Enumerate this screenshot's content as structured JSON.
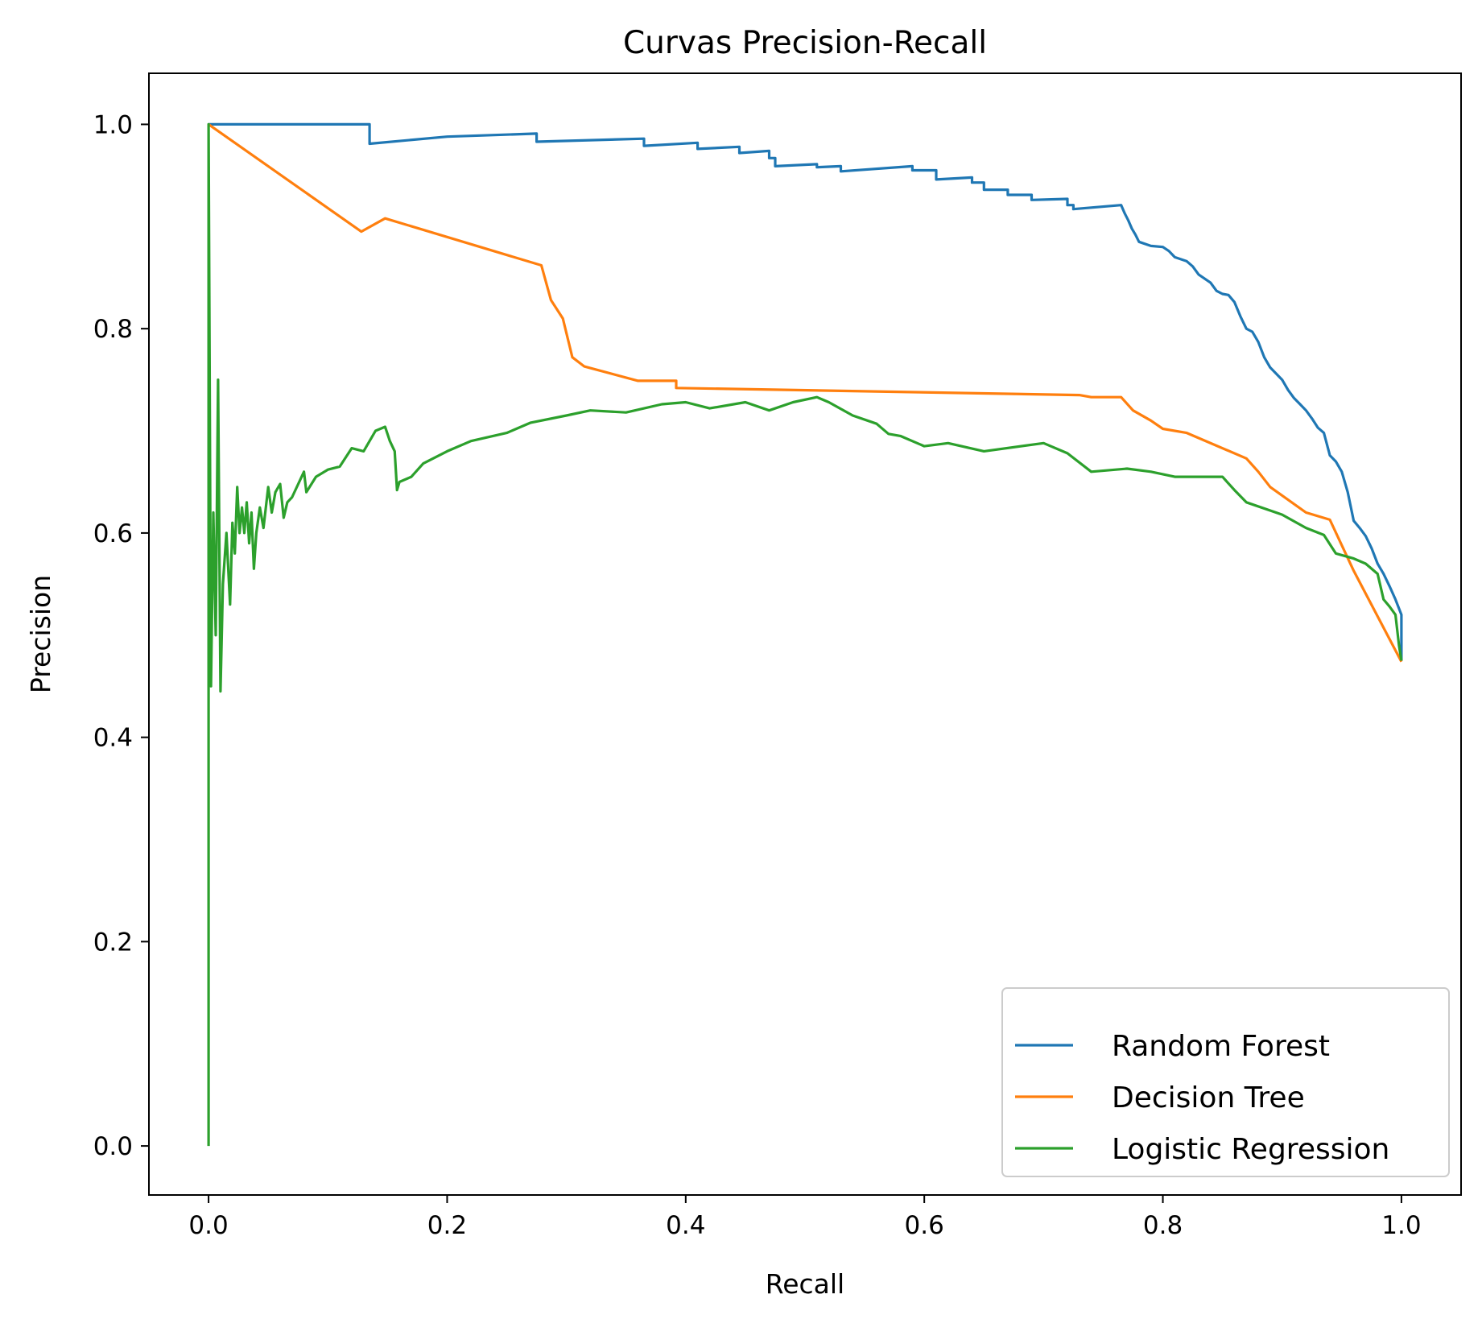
{
  "chart_data": {
    "type": "line",
    "title": "Curvas Precision-Recall",
    "xlabel": "Recall",
    "ylabel": "Precision",
    "xlim": [
      -0.05,
      1.05
    ],
    "ylim": [
      -0.048,
      1.05
    ],
    "xticks": [
      0.0,
      0.2,
      0.4,
      0.6,
      0.8,
      1.0
    ],
    "yticks": [
      0.0,
      0.2,
      0.4,
      0.6,
      0.8,
      1.0
    ],
    "xtick_labels": [
      "0.0",
      "0.2",
      "0.4",
      "0.6",
      "0.8",
      "1.0"
    ],
    "ytick_labels": [
      "0.0",
      "0.2",
      "0.4",
      "0.6",
      "0.8",
      "1.0"
    ],
    "grid": false,
    "legend_position": "lower-right",
    "series": [
      {
        "name": "Random Forest",
        "color": "#1f77b4",
        "step": true,
        "points": [
          [
            0.0,
            1.0
          ],
          [
            0.135,
            1.0
          ],
          [
            0.135,
            0.981
          ],
          [
            0.2,
            0.988
          ],
          [
            0.275,
            0.991
          ],
          [
            0.275,
            0.983
          ],
          [
            0.365,
            0.986
          ],
          [
            0.365,
            0.979
          ],
          [
            0.41,
            0.982
          ],
          [
            0.41,
            0.976
          ],
          [
            0.445,
            0.978
          ],
          [
            0.445,
            0.972
          ],
          [
            0.47,
            0.974
          ],
          [
            0.47,
            0.967
          ],
          [
            0.475,
            0.967
          ],
          [
            0.475,
            0.959
          ],
          [
            0.51,
            0.961
          ],
          [
            0.51,
            0.958
          ],
          [
            0.53,
            0.959
          ],
          [
            0.53,
            0.954
          ],
          [
            0.59,
            0.959
          ],
          [
            0.59,
            0.955
          ],
          [
            0.61,
            0.955
          ],
          [
            0.61,
            0.946
          ],
          [
            0.64,
            0.948
          ],
          [
            0.64,
            0.943
          ],
          [
            0.65,
            0.943
          ],
          [
            0.65,
            0.936
          ],
          [
            0.67,
            0.936
          ],
          [
            0.67,
            0.931
          ],
          [
            0.69,
            0.931
          ],
          [
            0.69,
            0.926
          ],
          [
            0.72,
            0.927
          ],
          [
            0.72,
            0.921
          ],
          [
            0.725,
            0.921
          ],
          [
            0.725,
            0.917
          ],
          [
            0.765,
            0.921
          ],
          [
            0.768,
            0.913
          ],
          [
            0.771,
            0.906
          ],
          [
            0.774,
            0.898
          ],
          [
            0.777,
            0.892
          ],
          [
            0.78,
            0.885
          ],
          [
            0.79,
            0.881
          ],
          [
            0.8,
            0.88
          ],
          [
            0.805,
            0.876
          ],
          [
            0.81,
            0.87
          ],
          [
            0.82,
            0.866
          ],
          [
            0.825,
            0.861
          ],
          [
            0.83,
            0.853
          ],
          [
            0.84,
            0.845
          ],
          [
            0.845,
            0.837
          ],
          [
            0.85,
            0.834
          ],
          [
            0.855,
            0.833
          ],
          [
            0.86,
            0.826
          ],
          [
            0.865,
            0.812
          ],
          [
            0.87,
            0.8
          ],
          [
            0.875,
            0.797
          ],
          [
            0.88,
            0.787
          ],
          [
            0.885,
            0.772
          ],
          [
            0.89,
            0.762
          ],
          [
            0.895,
            0.756
          ],
          [
            0.9,
            0.75
          ],
          [
            0.905,
            0.74
          ],
          [
            0.91,
            0.732
          ],
          [
            0.915,
            0.726
          ],
          [
            0.92,
            0.72
          ],
          [
            0.925,
            0.712
          ],
          [
            0.93,
            0.703
          ],
          [
            0.935,
            0.698
          ],
          [
            0.94,
            0.676
          ],
          [
            0.945,
            0.67
          ],
          [
            0.95,
            0.66
          ],
          [
            0.955,
            0.64
          ],
          [
            0.96,
            0.612
          ],
          [
            0.965,
            0.605
          ],
          [
            0.97,
            0.597
          ],
          [
            0.975,
            0.585
          ],
          [
            0.98,
            0.57
          ],
          [
            0.985,
            0.56
          ],
          [
            0.99,
            0.548
          ],
          [
            0.995,
            0.535
          ],
          [
            1.0,
            0.52
          ],
          [
            1.0,
            0.475
          ]
        ]
      },
      {
        "name": "Decision Tree",
        "color": "#ff7f0e",
        "step": false,
        "points": [
          [
            0.0,
            1.0
          ],
          [
            0.128,
            0.895
          ],
          [
            0.148,
            0.908
          ],
          [
            0.279,
            0.862
          ],
          [
            0.287,
            0.828
          ],
          [
            0.297,
            0.81
          ],
          [
            0.305,
            0.772
          ],
          [
            0.315,
            0.763
          ],
          [
            0.36,
            0.749
          ],
          [
            0.392,
            0.749
          ],
          [
            0.392,
            0.742
          ],
          [
            0.73,
            0.735
          ],
          [
            0.74,
            0.733
          ],
          [
            0.765,
            0.733
          ],
          [
            0.775,
            0.72
          ],
          [
            0.79,
            0.71
          ],
          [
            0.8,
            0.702
          ],
          [
            0.82,
            0.698
          ],
          [
            0.87,
            0.673
          ],
          [
            0.88,
            0.66
          ],
          [
            0.89,
            0.645
          ],
          [
            0.92,
            0.62
          ],
          [
            0.94,
            0.613
          ],
          [
            0.96,
            0.563
          ],
          [
            1.0,
            0.474
          ]
        ]
      },
      {
        "name": "Logistic Regression",
        "color": "#2ca02c",
        "step": false,
        "points": [
          [
            0.0,
            0.0
          ],
          [
            0.0,
            1.0
          ],
          [
            0.002,
            0.45
          ],
          [
            0.004,
            0.62
          ],
          [
            0.006,
            0.5
          ],
          [
            0.008,
            0.75
          ],
          [
            0.01,
            0.445
          ],
          [
            0.012,
            0.55
          ],
          [
            0.015,
            0.6
          ],
          [
            0.018,
            0.53
          ],
          [
            0.02,
            0.61
          ],
          [
            0.022,
            0.58
          ],
          [
            0.024,
            0.645
          ],
          [
            0.026,
            0.6
          ],
          [
            0.028,
            0.625
          ],
          [
            0.03,
            0.6
          ],
          [
            0.032,
            0.63
          ],
          [
            0.034,
            0.59
          ],
          [
            0.036,
            0.62
          ],
          [
            0.038,
            0.565
          ],
          [
            0.04,
            0.6
          ],
          [
            0.043,
            0.625
          ],
          [
            0.046,
            0.605
          ],
          [
            0.05,
            0.645
          ],
          [
            0.053,
            0.62
          ],
          [
            0.056,
            0.64
          ],
          [
            0.06,
            0.648
          ],
          [
            0.063,
            0.615
          ],
          [
            0.066,
            0.63
          ],
          [
            0.07,
            0.635
          ],
          [
            0.08,
            0.66
          ],
          [
            0.082,
            0.64
          ],
          [
            0.09,
            0.655
          ],
          [
            0.1,
            0.662
          ],
          [
            0.11,
            0.665
          ],
          [
            0.12,
            0.683
          ],
          [
            0.13,
            0.68
          ],
          [
            0.14,
            0.7
          ],
          [
            0.148,
            0.704
          ],
          [
            0.152,
            0.69
          ],
          [
            0.156,
            0.68
          ],
          [
            0.158,
            0.642
          ],
          [
            0.16,
            0.65
          ],
          [
            0.17,
            0.655
          ],
          [
            0.18,
            0.668
          ],
          [
            0.2,
            0.68
          ],
          [
            0.22,
            0.69
          ],
          [
            0.25,
            0.698
          ],
          [
            0.27,
            0.708
          ],
          [
            0.3,
            0.715
          ],
          [
            0.32,
            0.72
          ],
          [
            0.35,
            0.718
          ],
          [
            0.38,
            0.726
          ],
          [
            0.4,
            0.728
          ],
          [
            0.42,
            0.722
          ],
          [
            0.45,
            0.728
          ],
          [
            0.47,
            0.72
          ],
          [
            0.49,
            0.728
          ],
          [
            0.51,
            0.733
          ],
          [
            0.52,
            0.728
          ],
          [
            0.54,
            0.715
          ],
          [
            0.56,
            0.707
          ],
          [
            0.57,
            0.697
          ],
          [
            0.58,
            0.695
          ],
          [
            0.6,
            0.685
          ],
          [
            0.62,
            0.688
          ],
          [
            0.65,
            0.68
          ],
          [
            0.7,
            0.688
          ],
          [
            0.72,
            0.678
          ],
          [
            0.74,
            0.66
          ],
          [
            0.77,
            0.663
          ],
          [
            0.79,
            0.66
          ],
          [
            0.81,
            0.655
          ],
          [
            0.85,
            0.655
          ],
          [
            0.86,
            0.642
          ],
          [
            0.87,
            0.63
          ],
          [
            0.9,
            0.618
          ],
          [
            0.92,
            0.605
          ],
          [
            0.935,
            0.598
          ],
          [
            0.945,
            0.58
          ],
          [
            0.96,
            0.575
          ],
          [
            0.97,
            0.57
          ],
          [
            0.98,
            0.56
          ],
          [
            0.985,
            0.535
          ],
          [
            0.99,
            0.528
          ],
          [
            0.995,
            0.52
          ],
          [
            0.998,
            0.49
          ],
          [
            1.0,
            0.475
          ]
        ]
      }
    ]
  }
}
